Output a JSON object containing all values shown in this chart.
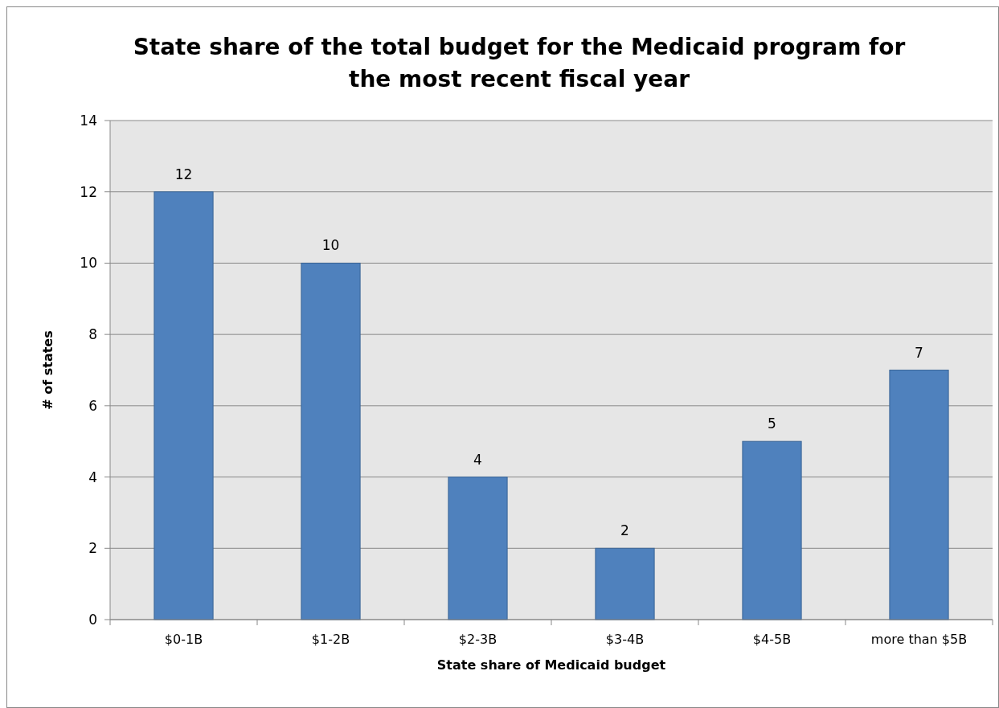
{
  "chart_data": {
    "type": "bar",
    "title": "State share of the total budget for the Medicaid program for the most recent fiscal year",
    "xlabel": "State share of Medicaid budget",
    "ylabel": "# of states",
    "categories": [
      "$0-1B",
      "$1-2B",
      "$2-3B",
      "$3-4B",
      "$4-5B",
      "more than $5B"
    ],
    "values": [
      12,
      10,
      4,
      2,
      5,
      7
    ],
    "color": "#4f81bd",
    "ylim": [
      0,
      14
    ],
    "yticks": [
      0,
      2,
      4,
      6,
      8,
      10,
      12,
      14
    ],
    "grid": "y",
    "data_labels": true
  }
}
